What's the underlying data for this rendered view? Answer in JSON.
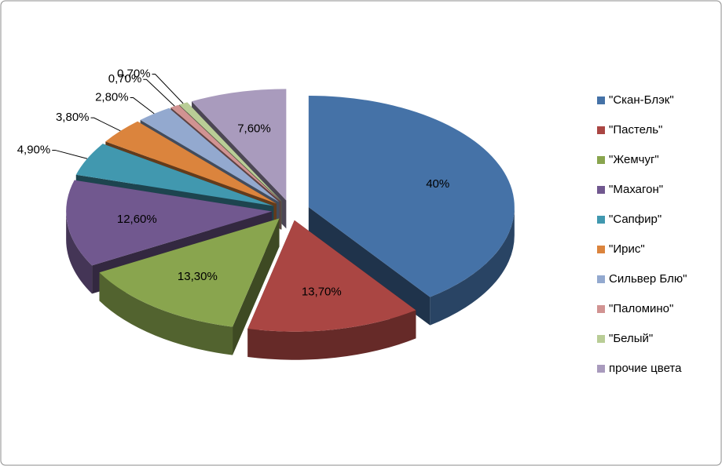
{
  "chart_data": {
    "type": "pie",
    "categories": [
      "\"Скан-Блэк\"",
      "\"Пастель\"",
      "\"Жемчуг\"",
      "\"Махагон\"",
      "\"Сапфир\"",
      "\"Ирис\"",
      "Сильвер Блю\"",
      "\"Паломино\"",
      "\"Белый\"",
      "прочие цвета"
    ],
    "values": [
      40,
      13.7,
      13.3,
      12.6,
      4.9,
      3.8,
      2.8,
      0.7,
      0.7,
      7.6
    ],
    "value_labels": [
      "40%",
      "13,70%",
      "13,30%",
      "12,60%",
      "4,90%",
      "3,80%",
      "2,80%",
      "0,70%",
      "0,70%",
      "7,60%"
    ],
    "colors": [
      "#4572a7",
      "#aa4643",
      "#89a54e",
      "#71588f",
      "#4198af",
      "#db843d",
      "#93a9cf",
      "#d19392",
      "#b9cd96",
      "#a99bbd"
    ],
    "legend": "right"
  }
}
